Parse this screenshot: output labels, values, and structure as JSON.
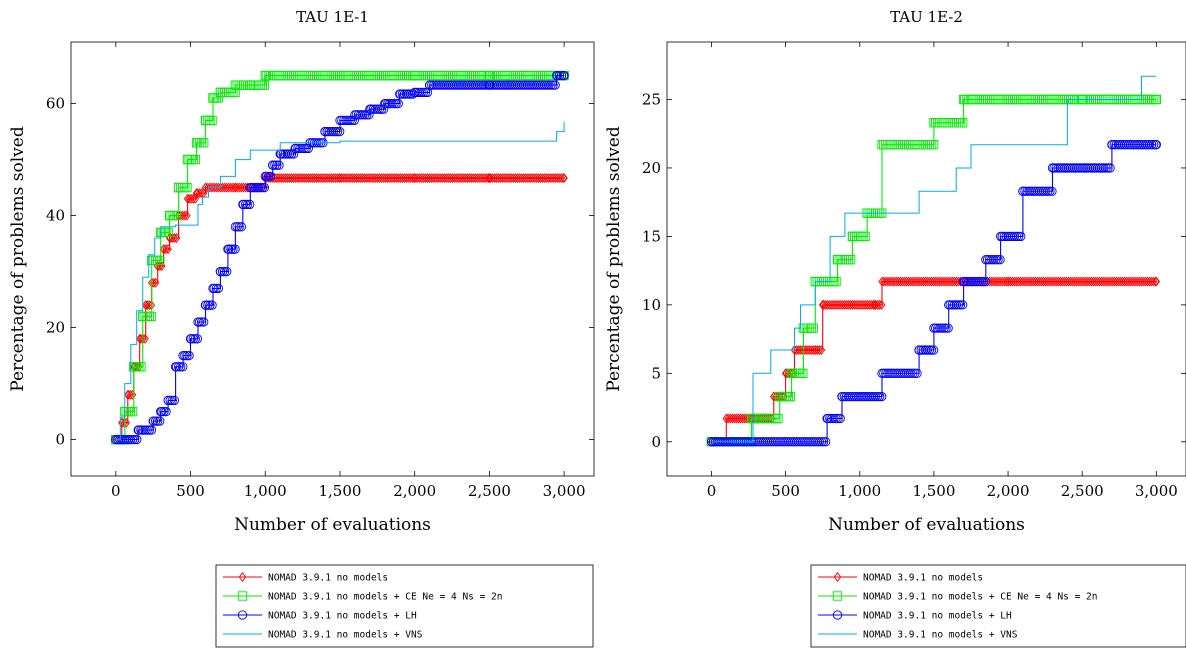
{
  "chart_data": [
    {
      "type": "line",
      "title": "TAU 1E-1",
      "xlabel": "Number of evaluations",
      "ylabel": "Percentage of problems solved",
      "xlim": [
        -300,
        3200
      ],
      "ylim": [
        -6.5,
        71
      ],
      "xticks": [
        0,
        500,
        1000,
        1500,
        2000,
        2500,
        3000
      ],
      "xtick_labels": [
        "0",
        "500",
        "1,000",
        "1,500",
        "2,000",
        "2,500",
        "3,000"
      ],
      "yticks": [
        0,
        20,
        40,
        60
      ],
      "ytick_labels": [
        "0",
        "20",
        "40",
        "60"
      ],
      "legend_position": "below",
      "series": [
        {
          "name": "NOMAD 3.9.1 no models",
          "color": "#ff0000",
          "marker": "diamond",
          "x": [
            0,
            40,
            80,
            120,
            160,
            200,
            240,
            280,
            320,
            360,
            420,
            480,
            540,
            600,
            800,
            1000,
            1500,
            2000,
            2500,
            3000
          ],
          "y": [
            0,
            3,
            8,
            13,
            18,
            24,
            28,
            31,
            34,
            36,
            40,
            43,
            44,
            45,
            45,
            46.7,
            46.7,
            46.7,
            46.7,
            46.7
          ]
        },
        {
          "name": "NOMAD 3.9.1 no models + CE Ne = 4 Ns = 2n",
          "color": "#00ee00",
          "marker": "square",
          "x": [
            0,
            60,
            120,
            180,
            240,
            300,
            360,
            420,
            480,
            540,
            600,
            650,
            700,
            800,
            900,
            1000,
            1500,
            2000,
            2500,
            3000
          ],
          "y": [
            0,
            5,
            13,
            22,
            32,
            37,
            40,
            45,
            50,
            53,
            57,
            61,
            62,
            63.3,
            63.3,
            65,
            65,
            65,
            65,
            65
          ]
        },
        {
          "name": "NOMAD 3.9.1 no models + LH",
          "color": "#0000ff",
          "marker": "circle",
          "x": [
            0,
            150,
            250,
            300,
            350,
            400,
            450,
            500,
            550,
            600,
            650,
            700,
            750,
            800,
            850,
            900,
            950,
            1000,
            1050,
            1100,
            1200,
            1300,
            1400,
            1500,
            1600,
            1700,
            1800,
            1900,
            2000,
            2100,
            2500,
            2950,
            3000
          ],
          "y": [
            0,
            1.7,
            3.3,
            5,
            7,
            13,
            15,
            18,
            21,
            24,
            27,
            30,
            34,
            38,
            42,
            45,
            45,
            47,
            49,
            51,
            52,
            53,
            55,
            57,
            58,
            59,
            60,
            61.7,
            62,
            63.3,
            63.3,
            65,
            65
          ]
        },
        {
          "name": "NOMAD 3.9.1 no models + VNS",
          "color": "#00aaee",
          "marker": "none",
          "x": [
            0,
            30,
            60,
            100,
            140,
            180,
            220,
            260,
            300,
            400,
            500,
            550,
            580,
            620,
            700,
            800,
            900,
            1000,
            1100,
            1500,
            2000,
            2500,
            2900,
            2950,
            3000
          ],
          "y": [
            0,
            4,
            10,
            17,
            23,
            29,
            33,
            36,
            38,
            38.3,
            38.3,
            42,
            43.3,
            45,
            47,
            50,
            51.7,
            51.7,
            53,
            53.3,
            53.3,
            53.3,
            53.3,
            55,
            56.7
          ]
        }
      ]
    },
    {
      "type": "line",
      "title": "TAU 1E-2",
      "xlabel": "Number of evaluations",
      "ylabel": "Percentage of problems solved",
      "xlim": [
        -300,
        3200
      ],
      "ylim": [
        -2.5,
        29.2
      ],
      "xticks": [
        0,
        500,
        1000,
        1500,
        2000,
        2500,
        3000
      ],
      "xtick_labels": [
        "0",
        "500",
        "1,000",
        "1,500",
        "2,000",
        "2,500",
        "3,000"
      ],
      "yticks": [
        0,
        5,
        10,
        15,
        20,
        25
      ],
      "ytick_labels": [
        "0",
        "5",
        "10",
        "15",
        "20",
        "25"
      ],
      "legend_position": "below",
      "series": [
        {
          "name": "NOMAD 3.9.1 no models",
          "color": "#ff0000",
          "marker": "diamond",
          "x": [
            0,
            100,
            420,
            500,
            560,
            700,
            750,
            1100,
            1150,
            2000,
            3000
          ],
          "y": [
            0,
            1.7,
            3.3,
            5,
            6.7,
            6.7,
            10,
            10,
            11.7,
            11.7,
            11.7
          ]
        },
        {
          "name": "NOMAD 3.9.1 no models + CE Ne = 4 Ns = 2n",
          "color": "#00ee00",
          "marker": "square",
          "x": [
            0,
            270,
            460,
            540,
            620,
            700,
            850,
            950,
            1050,
            1150,
            1500,
            1700,
            2000,
            2500,
            3000
          ],
          "y": [
            0,
            1.7,
            3.3,
            5,
            8.3,
            11.7,
            13.3,
            15,
            16.7,
            21.7,
            23.3,
            25,
            25,
            25,
            25
          ]
        },
        {
          "name": "NOMAD 3.9.1 no models + LH",
          "color": "#0000ff",
          "marker": "circle",
          "x": [
            0,
            780,
            880,
            1150,
            1400,
            1500,
            1600,
            1700,
            1850,
            1950,
            2100,
            2300,
            2700,
            3000
          ],
          "y": [
            0,
            1.7,
            3.3,
            5,
            6.7,
            8.3,
            10,
            11.7,
            13.3,
            15,
            18.3,
            20,
            21.7,
            21.7
          ]
        },
        {
          "name": "NOMAD 3.9.1 no models + VNS",
          "color": "#00aaee",
          "marker": "none",
          "x": [
            0,
            280,
            400,
            560,
            600,
            700,
            800,
            900,
            1050,
            1400,
            1650,
            1750,
            1900,
            2400,
            2900,
            3000
          ],
          "y": [
            0,
            5,
            6.7,
            8.3,
            10,
            11.7,
            15,
            16.7,
            16.7,
            18.3,
            20,
            21.7,
            21.7,
            25,
            26.7,
            26.7
          ]
        }
      ]
    }
  ]
}
